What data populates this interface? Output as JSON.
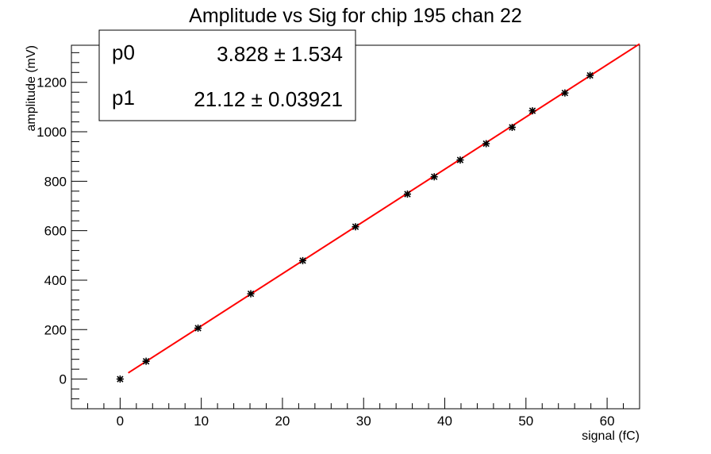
{
  "chart_data": {
    "type": "scatter",
    "title": "Amplitude vs Sig for chip 195 chan 22",
    "xlabel": "signal (fC)",
    "ylabel": "amplitude (mV)",
    "xlim": [
      -6,
      64
    ],
    "ylim": [
      -120,
      1350
    ],
    "x_ticks": [
      0,
      10,
      20,
      30,
      40,
      50,
      60
    ],
    "y_ticks": [
      0,
      200,
      400,
      600,
      800,
      1000,
      1200
    ],
    "marker": "asterisk",
    "marker_color": "#000000",
    "fit_color": "#ff0000",
    "grid": false,
    "points": [
      {
        "x": 0,
        "y": 0
      },
      {
        "x": 3.2,
        "y": 72
      },
      {
        "x": 9.6,
        "y": 206
      },
      {
        "x": 16.1,
        "y": 345
      },
      {
        "x": 22.5,
        "y": 479
      },
      {
        "x": 29,
        "y": 616
      },
      {
        "x": 35.4,
        "y": 748
      },
      {
        "x": 38.7,
        "y": 818
      },
      {
        "x": 41.9,
        "y": 886
      },
      {
        "x": 45.1,
        "y": 952
      },
      {
        "x": 48.3,
        "y": 1018
      },
      {
        "x": 50.8,
        "y": 1085
      },
      {
        "x": 54.8,
        "y": 1157
      },
      {
        "x": 57.9,
        "y": 1228
      }
    ],
    "fit": {
      "function": "linear",
      "x_range": [
        1,
        64
      ],
      "p0": 3.828,
      "p1": 21.12
    }
  },
  "stats_box": {
    "position": "top-left",
    "rows": [
      {
        "name": "p0",
        "value": "3.828 ± 1.534"
      },
      {
        "name": "p1",
        "value": "21.12 ± 0.03921"
      }
    ]
  }
}
